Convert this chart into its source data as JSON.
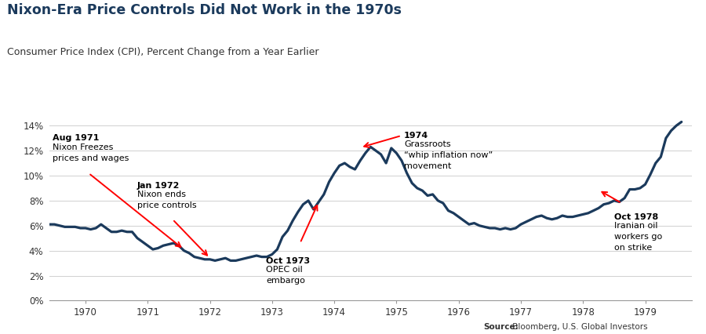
{
  "title": "Nixon-Era Price Controls Did Not Work in the 1970s",
  "subtitle": "Consumer Price Index (CPI), Percent Change from a Year Earlier",
  "source_bold": "Source:",
  "source_rest": " Bloomberg, U.S. Global Investors",
  "line_color": "#1b3a5c",
  "line_width": 2.3,
  "background_color": "#ffffff",
  "ylim": [
    0,
    15.5
  ],
  "yticks": [
    0,
    2,
    4,
    6,
    8,
    10,
    12,
    14
  ],
  "ytick_labels": [
    "0%",
    "2%",
    "4%",
    "6%",
    "8%",
    "10%",
    "12%",
    "14%"
  ],
  "dates": [
    1969.417,
    1969.5,
    1969.583,
    1969.667,
    1969.75,
    1969.833,
    1969.917,
    1970.0,
    1970.083,
    1970.167,
    1970.25,
    1970.333,
    1970.417,
    1970.5,
    1970.583,
    1970.667,
    1970.75,
    1970.833,
    1970.917,
    1971.0,
    1971.083,
    1971.167,
    1971.25,
    1971.333,
    1971.417,
    1971.5,
    1971.583,
    1971.667,
    1971.75,
    1971.833,
    1971.917,
    1972.0,
    1972.083,
    1972.167,
    1972.25,
    1972.333,
    1972.417,
    1972.5,
    1972.583,
    1972.667,
    1972.75,
    1972.833,
    1972.917,
    1973.0,
    1973.083,
    1973.167,
    1973.25,
    1973.333,
    1973.417,
    1973.5,
    1973.583,
    1973.667,
    1973.75,
    1973.833,
    1973.917,
    1974.0,
    1974.083,
    1974.167,
    1974.25,
    1974.333,
    1974.417,
    1974.5,
    1974.583,
    1974.667,
    1974.75,
    1974.833,
    1974.917,
    1975.0,
    1975.083,
    1975.167,
    1975.25,
    1975.333,
    1975.417,
    1975.5,
    1975.583,
    1975.667,
    1975.75,
    1975.833,
    1975.917,
    1976.0,
    1976.083,
    1976.167,
    1976.25,
    1976.333,
    1976.417,
    1976.5,
    1976.583,
    1976.667,
    1976.75,
    1976.833,
    1976.917,
    1977.0,
    1977.083,
    1977.167,
    1977.25,
    1977.333,
    1977.417,
    1977.5,
    1977.583,
    1977.667,
    1977.75,
    1977.833,
    1977.917,
    1978.0,
    1978.083,
    1978.167,
    1978.25,
    1978.333,
    1978.417,
    1978.5,
    1978.583,
    1978.667,
    1978.75,
    1978.833,
    1978.917,
    1979.0,
    1979.083,
    1979.167,
    1979.25,
    1979.333,
    1979.417,
    1979.5,
    1979.583
  ],
  "cpi": [
    6.1,
    6.1,
    6.0,
    5.9,
    5.9,
    5.9,
    5.8,
    5.8,
    5.7,
    5.8,
    6.1,
    5.8,
    5.5,
    5.5,
    5.6,
    5.5,
    5.5,
    5.0,
    4.7,
    4.4,
    4.1,
    4.2,
    4.4,
    4.5,
    4.6,
    4.4,
    4.0,
    3.8,
    3.5,
    3.4,
    3.3,
    3.3,
    3.2,
    3.3,
    3.4,
    3.2,
    3.2,
    3.3,
    3.4,
    3.5,
    3.6,
    3.5,
    3.5,
    3.7,
    4.1,
    5.1,
    5.6,
    6.4,
    7.1,
    7.7,
    8.0,
    7.3,
    7.9,
    8.5,
    9.5,
    10.2,
    10.8,
    11.0,
    10.7,
    10.5,
    11.2,
    11.8,
    12.3,
    12.0,
    11.7,
    11.0,
    12.2,
    11.8,
    11.2,
    10.2,
    9.4,
    9.0,
    8.8,
    8.4,
    8.5,
    8.0,
    7.8,
    7.2,
    7.0,
    6.7,
    6.4,
    6.1,
    6.2,
    6.0,
    5.9,
    5.8,
    5.8,
    5.7,
    5.8,
    5.7,
    5.8,
    6.1,
    6.3,
    6.5,
    6.7,
    6.8,
    6.6,
    6.5,
    6.6,
    6.8,
    6.7,
    6.7,
    6.8,
    6.9,
    7.0,
    7.2,
    7.4,
    7.7,
    7.8,
    8.0,
    7.9,
    8.2,
    8.9,
    8.9,
    9.0,
    9.3,
    10.1,
    11.0,
    11.5,
    13.0,
    13.6,
    14.0,
    14.3
  ],
  "xticks": [
    1970,
    1971,
    1972,
    1973,
    1974,
    1975,
    1976,
    1977,
    1978,
    1979
  ],
  "xlim": [
    1969.42,
    1979.75
  ]
}
